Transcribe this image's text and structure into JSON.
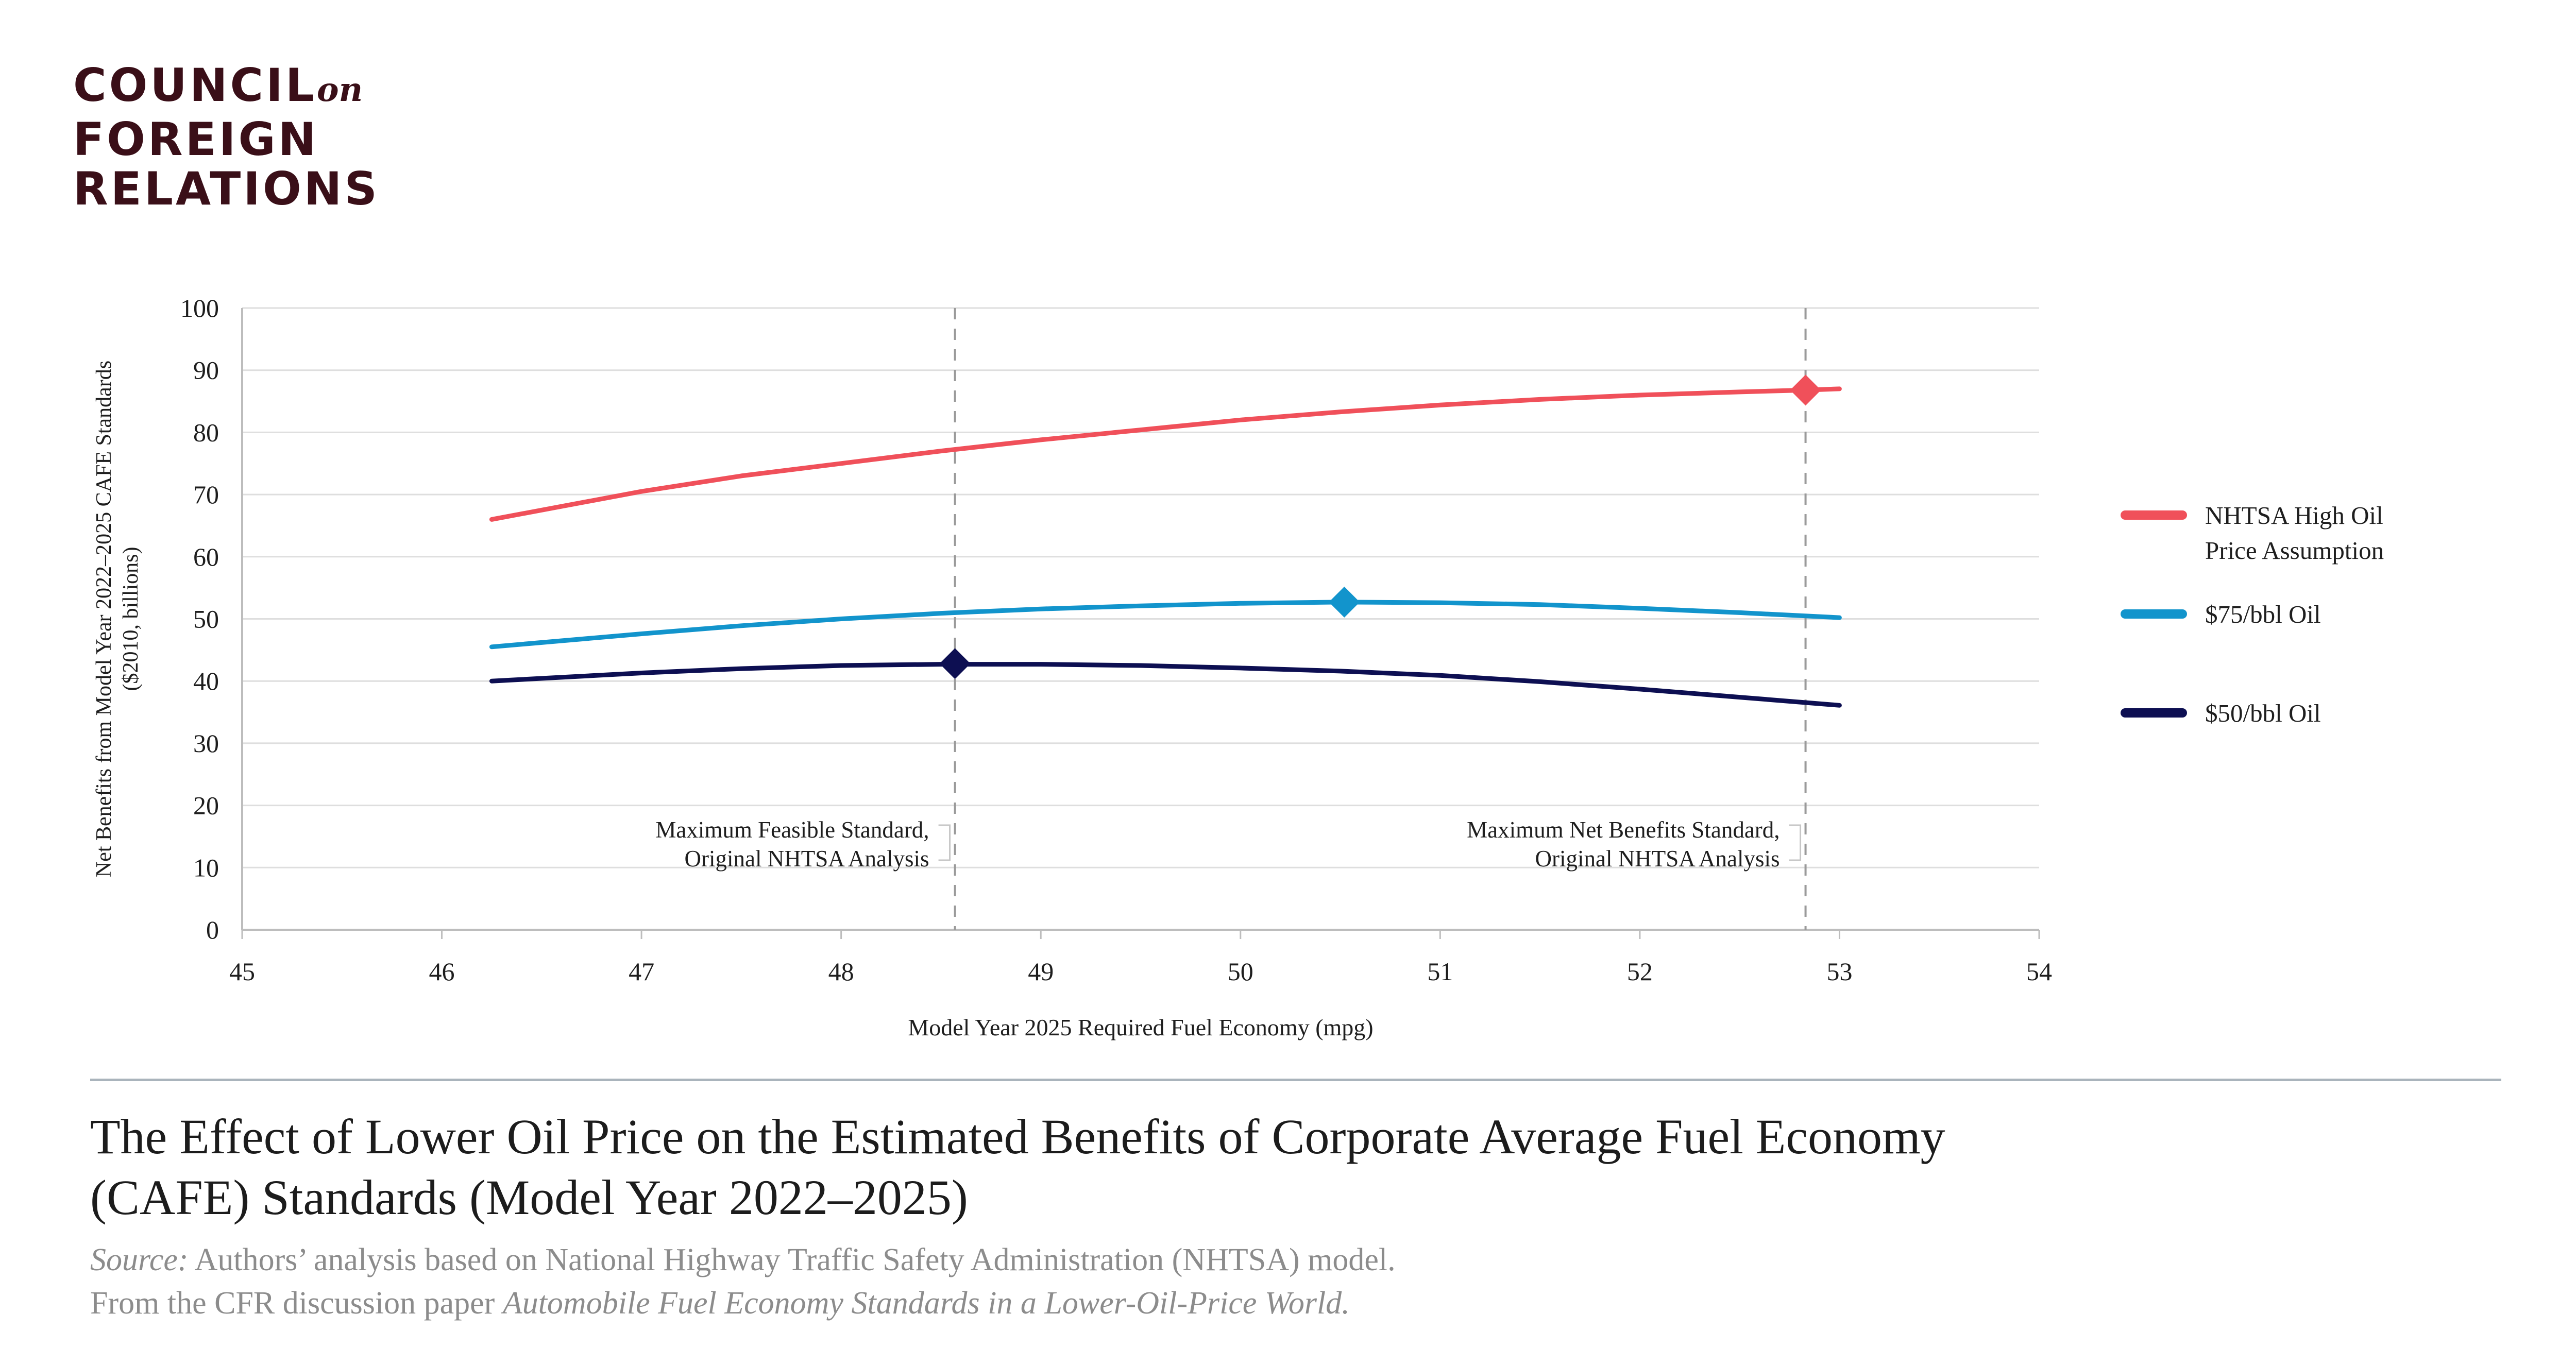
{
  "logo": {
    "line1": "COUNCIL",
    "on": "on",
    "line2": "FOREIGN",
    "line3": "RELATIONS"
  },
  "chart_data": {
    "type": "line",
    "xlabel": "Model Year 2025 Required Fuel Economy (mpg)",
    "ylabel": [
      "Net Benefits from Model Year 2022–2025 CAFE Standards",
      "($2010, billions)"
    ],
    "xlim": [
      45,
      54
    ],
    "ylim": [
      0,
      100
    ],
    "xticks": [
      45,
      46,
      47,
      48,
      49,
      50,
      51,
      52,
      53,
      54
    ],
    "yticks": [
      0,
      10,
      20,
      30,
      40,
      50,
      60,
      70,
      80,
      90,
      100
    ],
    "grid": "horizontal",
    "legend_position": "right",
    "series": [
      {
        "name": "NHTSA High Oil Price Assumption",
        "legend_lines": [
          "NHTSA High Oil",
          "Price Assumption"
        ],
        "color": "#f0505a",
        "x": [
          46.25,
          47,
          47.5,
          48,
          48.5,
          49,
          49.5,
          50,
          50.5,
          51,
          51.5,
          52,
          52.5,
          52.83,
          53
        ],
        "y": [
          66,
          70.5,
          73,
          75,
          77,
          78.8,
          80.4,
          82,
          83.3,
          84.4,
          85.3,
          86,
          86.5,
          86.8,
          87
        ],
        "marker": {
          "x": 52.83,
          "y": 86.8
        }
      },
      {
        "name": "$75/bbl Oil",
        "legend_lines": [
          "$75/bbl Oil"
        ],
        "color": "#1294cc",
        "x": [
          46.25,
          47,
          47.5,
          48,
          48.5,
          49,
          49.5,
          50,
          50.5,
          51,
          51.5,
          52,
          52.5,
          53
        ],
        "y": [
          45.5,
          47.6,
          48.9,
          50,
          50.9,
          51.6,
          52.1,
          52.5,
          52.7,
          52.6,
          52.3,
          51.7,
          51,
          50.2
        ],
        "marker": {
          "x": 50.52,
          "y": 52.7
        }
      },
      {
        "name": "$50/bbl Oil",
        "legend_lines": [
          "$50/bbl Oil"
        ],
        "color": "#0d0f52",
        "x": [
          46.25,
          47,
          47.5,
          48,
          48.5,
          49,
          49.5,
          50,
          50.5,
          51,
          51.5,
          52,
          52.5,
          53
        ],
        "y": [
          40,
          41.3,
          42,
          42.5,
          42.7,
          42.7,
          42.5,
          42.1,
          41.6,
          40.9,
          39.9,
          38.7,
          37.4,
          36.1
        ],
        "marker": {
          "x": 48.57,
          "y": 42.8
        }
      }
    ],
    "reference_lines": [
      {
        "x": 48.57,
        "label": [
          "Maximum Feasible Standard,",
          "Original NHTSA Analysis"
        ],
        "label_y": 14
      },
      {
        "x": 52.83,
        "label": [
          "Maximum Net Benefits Standard,",
          "Original NHTSA Analysis"
        ],
        "label_y": 14
      }
    ],
    "colors": {
      "axis": "#bdbdbd",
      "grid": "#dedede",
      "reference": "#9a9a9a",
      "text": "#1e1e1e"
    }
  },
  "footer": {
    "title_line1": "The Effect of Lower Oil Price on the Estimated Benefits of Corporate Average Fuel Economy",
    "title_line2": "(CAFE) Standards (Model Year 2022–2025)",
    "source_label": "Source:",
    "source_text": " Authors’ analysis based on National Highway Traffic Safety Administration (NHTSA) model.",
    "from_text": "From the CFR discussion paper ",
    "paper_title": "Automobile Fuel Economy Standards in a Lower-Oil-Price World."
  }
}
